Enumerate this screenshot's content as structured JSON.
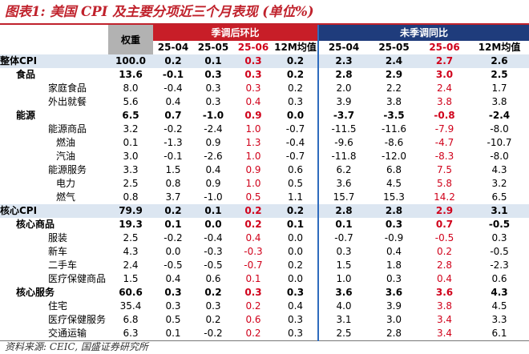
{
  "title": "图表1: 美国 CPI 及主要分项近三个月表现 (单位%)",
  "source": "资料来源: CEIC, 国盛证券研究所",
  "header": {
    "weight": "权重",
    "group_mom": "季调后环比",
    "group_yoy": "未季调同比",
    "periods": [
      "25-04",
      "25-05",
      "25-06",
      "12M均值"
    ]
  },
  "rows": [
    {
      "label": "整体CPI",
      "level": 0,
      "bold": true,
      "hl": true,
      "weight": "100.0",
      "mom": [
        "0.2",
        "0.1",
        "0.3",
        "0.2"
      ],
      "yoy": [
        "2.3",
        "2.4",
        "2.7",
        "2.6"
      ]
    },
    {
      "label": "食品",
      "level": 1,
      "bold": true,
      "weight": "13.6",
      "mom": [
        "-0.1",
        "0.3",
        "0.3",
        "0.2"
      ],
      "yoy": [
        "2.8",
        "2.9",
        "3.0",
        "2.5"
      ]
    },
    {
      "label": "家庭食品",
      "level": 2,
      "weight": "8.0",
      "mom": [
        "-0.4",
        "0.3",
        "0.3",
        "0.2"
      ],
      "yoy": [
        "2.0",
        "2.2",
        "2.4",
        "1.7"
      ]
    },
    {
      "label": "外出就餐",
      "level": 2,
      "weight": "5.6",
      "mom": [
        "0.4",
        "0.3",
        "0.4",
        "0.3"
      ],
      "yoy": [
        "3.9",
        "3.8",
        "3.8",
        "3.8"
      ]
    },
    {
      "label": "能源",
      "level": 1,
      "bold": true,
      "weight": "6.5",
      "mom": [
        "0.7",
        "-1.0",
        "0.9",
        "0.0"
      ],
      "yoy": [
        "-3.7",
        "-3.5",
        "-0.8",
        "-2.4"
      ]
    },
    {
      "label": "能源商品",
      "level": 2,
      "weight": "3.2",
      "mom": [
        "-0.2",
        "-2.4",
        "1.0",
        "-0.7"
      ],
      "yoy": [
        "-11.5",
        "-11.6",
        "-7.9",
        "-8.0"
      ]
    },
    {
      "label": "燃油",
      "level": 3,
      "weight": "0.1",
      "mom": [
        "-1.3",
        "0.9",
        "1.3",
        "-0.4"
      ],
      "yoy": [
        "-9.6",
        "-8.6",
        "-4.7",
        "-10.7"
      ]
    },
    {
      "label": "汽油",
      "level": 3,
      "weight": "3.0",
      "mom": [
        "-0.1",
        "-2.6",
        "1.0",
        "-0.7"
      ],
      "yoy": [
        "-11.8",
        "-12.0",
        "-8.3",
        "-8.0"
      ]
    },
    {
      "label": "能源服务",
      "level": 2,
      "weight": "3.3",
      "mom": [
        "1.5",
        "0.4",
        "0.9",
        "0.6"
      ],
      "yoy": [
        "6.2",
        "6.8",
        "7.5",
        "4.3"
      ]
    },
    {
      "label": "电力",
      "level": 3,
      "weight": "2.5",
      "mom": [
        "0.8",
        "0.9",
        "1.0",
        "0.5"
      ],
      "yoy": [
        "3.6",
        "4.5",
        "5.8",
        "3.2"
      ]
    },
    {
      "label": "燃气",
      "level": 3,
      "weight": "0.8",
      "mom": [
        "3.7",
        "-1.0",
        "0.5",
        "1.1"
      ],
      "yoy": [
        "15.7",
        "15.3",
        "14.2",
        "6.5"
      ]
    },
    {
      "label": "核心CPI",
      "level": 0,
      "bold": true,
      "hl": true,
      "weight": "79.9",
      "mom": [
        "0.2",
        "0.1",
        "0.2",
        "0.2"
      ],
      "yoy": [
        "2.8",
        "2.8",
        "2.9",
        "3.1"
      ]
    },
    {
      "label": "核心商品",
      "level": 1,
      "bold": true,
      "weight": "19.3",
      "mom": [
        "0.1",
        "0.0",
        "0.2",
        "0.1"
      ],
      "yoy": [
        "0.1",
        "0.3",
        "0.7",
        "-0.5"
      ]
    },
    {
      "label": "服装",
      "level": 2,
      "weight": "2.5",
      "mom": [
        "-0.2",
        "-0.4",
        "0.4",
        "0.0"
      ],
      "yoy": [
        "-0.7",
        "-0.9",
        "-0.5",
        "0.3"
      ]
    },
    {
      "label": "新车",
      "level": 2,
      "weight": "4.3",
      "mom": [
        "0.0",
        "-0.3",
        "-0.3",
        "0.0"
      ],
      "yoy": [
        "0.3",
        "0.4",
        "0.2",
        "-0.5"
      ]
    },
    {
      "label": "二手车",
      "level": 2,
      "weight": "2.4",
      "mom": [
        "-0.5",
        "-0.5",
        "-0.7",
        "0.2"
      ],
      "yoy": [
        "1.5",
        "1.8",
        "2.8",
        "-2.3"
      ]
    },
    {
      "label": "医疗保健商品",
      "level": 2,
      "weight": "1.5",
      "mom": [
        "0.4",
        "0.6",
        "0.1",
        "0.0"
      ],
      "yoy": [
        "1.0",
        "0.3",
        "0.4",
        "0.6"
      ]
    },
    {
      "label": "核心服务",
      "level": 1,
      "bold": true,
      "weight": "60.6",
      "mom": [
        "0.3",
        "0.2",
        "0.3",
        "0.3"
      ],
      "yoy": [
        "3.6",
        "3.6",
        "3.6",
        "4.3"
      ]
    },
    {
      "label": "住宅",
      "level": 2,
      "weight": "35.4",
      "mom": [
        "0.3",
        "0.3",
        "0.2",
        "0.4"
      ],
      "yoy": [
        "4.0",
        "3.9",
        "3.8",
        "4.5"
      ]
    },
    {
      "label": "医疗保健服务",
      "level": 2,
      "weight": "6.8",
      "mom": [
        "0.5",
        "0.2",
        "0.6",
        "0.3"
      ],
      "yoy": [
        "3.1",
        "3.0",
        "3.4",
        "3.3"
      ]
    },
    {
      "label": "交通运输",
      "level": 2,
      "weight": "6.3",
      "mom": [
        "0.1",
        "-0.2",
        "0.2",
        "0.3"
      ],
      "yoy": [
        "2.5",
        "2.8",
        "3.4",
        "6.1"
      ]
    }
  ],
  "colors": {
    "accent_red": "#c81e28",
    "accent_blue": "#1f3c7c",
    "highlight": "#dce6f1",
    "value_red": "#d0021b"
  }
}
